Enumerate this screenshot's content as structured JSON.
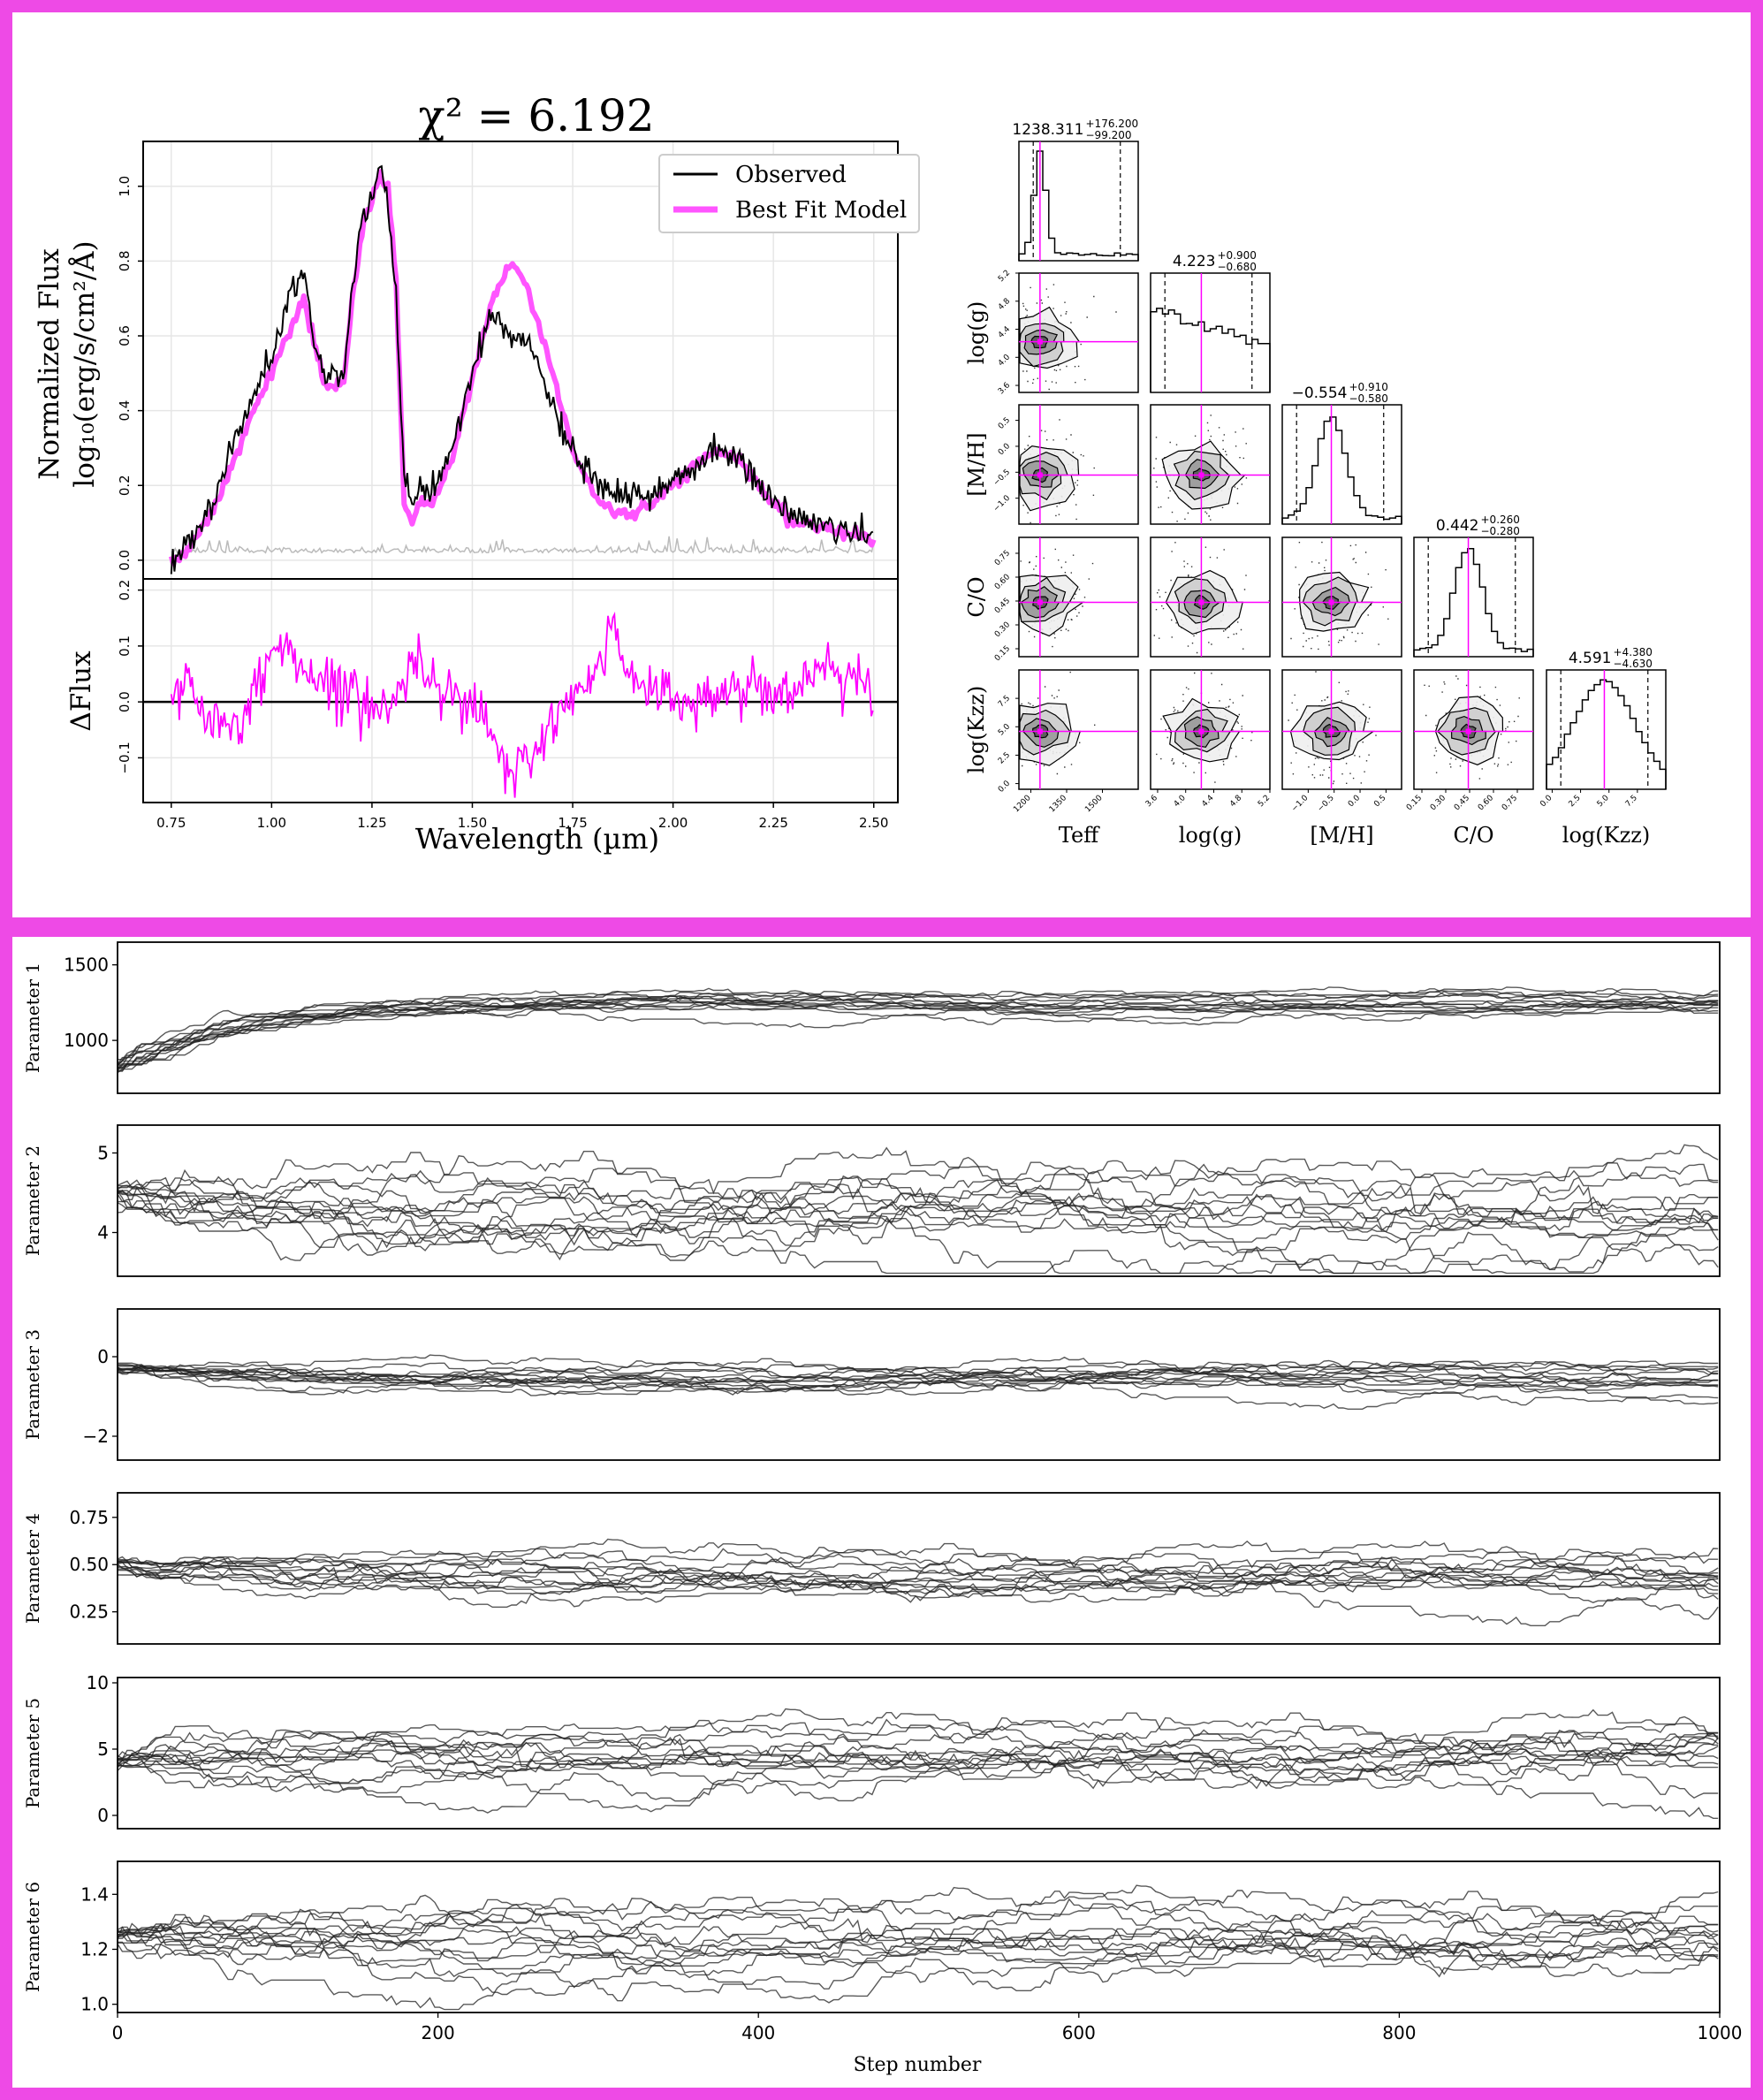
{
  "colors": {
    "frame": "#ee4ae6",
    "observed": "#000000",
    "model": "#ff55ff",
    "residual": "#ff00ff",
    "error": "#bbbbbb",
    "corner_line": "#ff00ff",
    "trace": "#222222"
  },
  "chart_data": [
    {
      "type": "line",
      "title": "χ² = 6.192",
      "xlabel": "Wavelength (µm)",
      "ylabel_line1": "Normalized Flux",
      "ylabel_line2": "log₁₀(erg/s/cm²/Å)",
      "xlim": [
        0.68,
        2.56
      ],
      "ylim": [
        -0.05,
        1.12
      ],
      "xticks": [
        "0.75",
        "1.00",
        "1.25",
        "1.50",
        "1.75",
        "2.00",
        "2.25",
        "2.50"
      ],
      "yticks": [
        "0.0",
        "0.2",
        "0.4",
        "0.6",
        "0.8",
        "1.0"
      ],
      "legend_position": "top-right",
      "grid": true,
      "series": [
        {
          "name": "Observed",
          "x": [
            0.75,
            0.8,
            0.85,
            0.9,
            0.95,
            1.0,
            1.05,
            1.08,
            1.1,
            1.13,
            1.15,
            1.18,
            1.2,
            1.23,
            1.25,
            1.27,
            1.29,
            1.31,
            1.33,
            1.35,
            1.37,
            1.4,
            1.45,
            1.5,
            1.55,
            1.6,
            1.63,
            1.65,
            1.7,
            1.75,
            1.8,
            1.85,
            1.9,
            1.95,
            2.0,
            2.05,
            2.1,
            2.15,
            2.2,
            2.25,
            2.3,
            2.35,
            2.4,
            2.45,
            2.5
          ],
          "y": [
            0.0,
            0.05,
            0.15,
            0.3,
            0.42,
            0.55,
            0.72,
            0.78,
            0.6,
            0.48,
            0.5,
            0.5,
            0.72,
            0.95,
            0.95,
            1.05,
            0.95,
            0.7,
            0.2,
            0.15,
            0.2,
            0.18,
            0.3,
            0.5,
            0.66,
            0.6,
            0.58,
            0.55,
            0.42,
            0.28,
            0.22,
            0.18,
            0.16,
            0.17,
            0.22,
            0.25,
            0.29,
            0.28,
            0.22,
            0.16,
            0.12,
            0.1,
            0.09,
            0.08,
            0.06
          ]
        },
        {
          "name": "Best Fit Model",
          "x": [
            0.75,
            0.8,
            0.85,
            0.9,
            0.95,
            1.0,
            1.05,
            1.08,
            1.1,
            1.13,
            1.15,
            1.18,
            1.2,
            1.23,
            1.25,
            1.27,
            1.29,
            1.31,
            1.33,
            1.35,
            1.37,
            1.4,
            1.45,
            1.5,
            1.55,
            1.6,
            1.63,
            1.65,
            1.7,
            1.75,
            1.8,
            1.85,
            1.9,
            1.95,
            2.0,
            2.05,
            2.1,
            2.15,
            2.2,
            2.25,
            2.3,
            2.35,
            2.4,
            2.45,
            2.5
          ],
          "y": [
            0.0,
            0.04,
            0.13,
            0.25,
            0.38,
            0.5,
            0.63,
            0.7,
            0.62,
            0.47,
            0.47,
            0.47,
            0.68,
            0.9,
            0.97,
            1.02,
            1.0,
            0.75,
            0.15,
            0.1,
            0.15,
            0.15,
            0.28,
            0.48,
            0.7,
            0.8,
            0.74,
            0.68,
            0.5,
            0.3,
            0.18,
            0.13,
            0.12,
            0.15,
            0.2,
            0.25,
            0.29,
            0.28,
            0.22,
            0.15,
            0.1,
            0.09,
            0.08,
            0.07,
            0.06
          ]
        }
      ]
    },
    {
      "type": "line",
      "ylabel": "ΔFlux",
      "xlim": [
        0.68,
        2.56
      ],
      "ylim": [
        -0.18,
        0.22
      ],
      "yticks": [
        "−0.1",
        "0.0",
        "0.1",
        "0.2"
      ],
      "series": [
        {
          "name": "",
          "x": [
            0.75,
            0.8,
            0.85,
            0.9,
            0.95,
            1.0,
            1.05,
            1.1,
            1.15,
            1.2,
            1.25,
            1.3,
            1.35,
            1.4,
            1.45,
            1.5,
            1.55,
            1.6,
            1.65,
            1.7,
            1.75,
            1.8,
            1.85,
            1.9,
            1.95,
            2.0,
            2.05,
            2.1,
            2.15,
            2.2,
            2.25,
            2.3,
            2.35,
            2.4,
            2.45,
            2.5
          ],
          "y": [
            0.0,
            0.05,
            -0.05,
            -0.05,
            -0.01,
            0.1,
            0.09,
            0.05,
            0.02,
            0.04,
            -0.02,
            0.0,
            0.07,
            0.05,
            0.02,
            0.0,
            -0.07,
            -0.14,
            -0.1,
            -0.03,
            0.0,
            0.04,
            0.13,
            0.05,
            0.02,
            0.01,
            0.0,
            0.01,
            0.02,
            0.03,
            0.02,
            0.03,
            0.04,
            0.05,
            0.06,
            0.0
          ]
        }
      ]
    },
    {
      "type": "scatter",
      "params": [
        "Teff",
        "log(g)",
        "[M/H]",
        "C/O",
        "log(Kzz)"
      ],
      "medians": [
        1238.311,
        4.223,
        -0.554,
        0.442,
        4.591
      ],
      "titles": [
        {
          "value": "1238.311",
          "plus": "+176.200",
          "minus": "−99.200"
        },
        {
          "value": "4.223",
          "plus": "+0.900",
          "minus": "−0.680"
        },
        {
          "value": "−0.554",
          "plus": "+0.910",
          "minus": "−0.580"
        },
        {
          "value": "0.442",
          "plus": "+0.260",
          "minus": "−0.280"
        },
        {
          "value": "4.591",
          "plus": "+4.380",
          "minus": "−4.630"
        }
      ],
      "ranges": [
        [
          1150,
          1650
        ],
        [
          3.5,
          5.2
        ],
        [
          -1.5,
          0.8
        ],
        [
          0.1,
          0.85
        ],
        [
          -0.5,
          10
        ]
      ],
      "ticks": [
        [
          "1200",
          "1350",
          "1500"
        ],
        [
          "3.6",
          "4.0",
          "4.4",
          "4.8",
          "5.2"
        ],
        [
          "−1.0",
          "−0.5",
          "0.0",
          "0.5"
        ],
        [
          "0.15",
          "0.30",
          "0.45",
          "0.60",
          "0.75"
        ],
        [
          "0.0",
          "2.5",
          "5.0",
          "7.5"
        ]
      ],
      "tick_values": [
        [
          1200,
          1350,
          1500
        ],
        [
          3.6,
          4.0,
          4.4,
          4.8,
          5.2
        ],
        [
          -1.0,
          -0.5,
          0.0,
          0.5
        ],
        [
          0.15,
          0.3,
          0.45,
          0.6,
          0.75
        ],
        [
          0.0,
          2.5,
          5.0,
          7.5
        ]
      ]
    },
    {
      "type": "line",
      "xlabel": "Step number",
      "xlim": [
        0,
        1000
      ],
      "xticks": [
        "0",
        "200",
        "400",
        "600",
        "800",
        "1000"
      ],
      "panels": [
        {
          "ylabel": "Parameter 1",
          "ylim": [
            650,
            1650
          ],
          "yticks": [
            "1000",
            "1500"
          ],
          "ytick_values": [
            1000,
            1500
          ],
          "start": 800,
          "center": 1240,
          "spread": 70
        },
        {
          "ylabel": "Parameter 2",
          "ylim": [
            3.45,
            5.35
          ],
          "yticks": [
            "4",
            "5"
          ],
          "ytick_values": [
            4,
            5
          ],
          "start": 4.5,
          "center": 4.3,
          "spread": 0.5
        },
        {
          "ylabel": "Parameter 3",
          "ylim": [
            -2.6,
            1.2
          ],
          "yticks": [
            "−2",
            "0"
          ],
          "ytick_values": [
            -2,
            0
          ],
          "start": -0.3,
          "center": -0.55,
          "spread": 0.35
        },
        {
          "ylabel": "Parameter 4",
          "ylim": [
            0.08,
            0.88
          ],
          "yticks": [
            "0.25",
            "0.50",
            "0.75"
          ],
          "ytick_values": [
            0.25,
            0.5,
            0.75
          ],
          "start": 0.5,
          "center": 0.44,
          "spread": 0.12
        },
        {
          "ylabel": "Parameter 5",
          "ylim": [
            -1,
            10.4
          ],
          "yticks": [
            "0",
            "5",
            "10"
          ],
          "ytick_values": [
            0,
            5,
            10
          ],
          "start": 4,
          "center": 4.6,
          "spread": 2.2
        },
        {
          "ylabel": "Parameter 6",
          "ylim": [
            0.97,
            1.52
          ],
          "yticks": [
            "1.0",
            "1.2",
            "1.4"
          ],
          "ytick_values": [
            1.0,
            1.2,
            1.4
          ],
          "start": 1.25,
          "center": 1.24,
          "spread": 0.12
        }
      ]
    }
  ]
}
